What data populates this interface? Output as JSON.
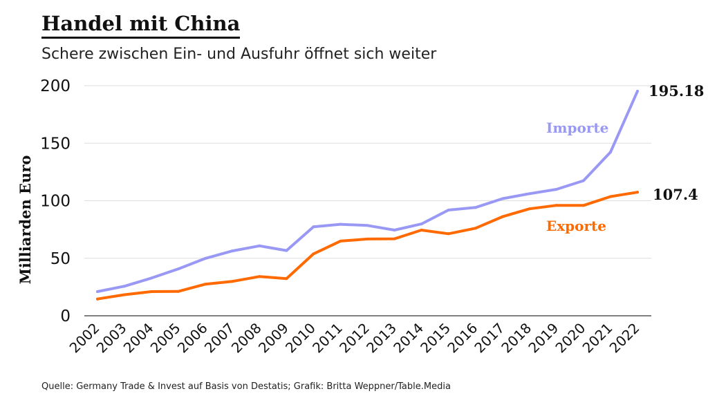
{
  "header": {
    "title": "Handel mit China",
    "subtitle": "Schere zwischen Ein- und Ausfuhr öffnet sich weiter"
  },
  "footer": {
    "source": "Quelle: Germany Trade & Invest auf Basis von Destatis; Grafik: Britta Weppner/Table.Media"
  },
  "colors": {
    "imports": "#9999f5",
    "exports": "#ff6a00",
    "grid": "#dddddd"
  },
  "chart_data": {
    "type": "line",
    "title": "Handel mit China",
    "subtitle": "Schere zwischen Ein- und Ausfuhr öffnet sich weiter",
    "xlabel": "",
    "ylabel": "Milliarden Euro",
    "ylim": [
      0,
      200
    ],
    "yticks": [
      "0",
      "50",
      "100",
      "150",
      "200"
    ],
    "grid": true,
    "x": [
      "2002",
      "2003",
      "2004",
      "2005",
      "2006",
      "2007",
      "2008",
      "2009",
      "2010",
      "2011",
      "2012",
      "2013",
      "2014",
      "2015",
      "2016",
      "2017",
      "2018",
      "2019",
      "2020",
      "2021",
      "2022"
    ],
    "series": [
      {
        "name": "Importe",
        "color": "#9999f5",
        "values": [
          21,
          25.7,
          32.8,
          40.8,
          49.9,
          56.4,
          60.8,
          56.7,
          77.3,
          79.5,
          78.5,
          74.5,
          79.8,
          91.9,
          94.1,
          101.8,
          106.1,
          109.9,
          117.4,
          142.3,
          195.18
        ],
        "end_label": "195.18"
      },
      {
        "name": "Exporte",
        "color": "#ff6a00",
        "values": [
          14.6,
          18.3,
          21,
          21.2,
          27.5,
          29.9,
          34.1,
          32.3,
          53.8,
          64.9,
          66.7,
          66.9,
          74.5,
          71.3,
          76.1,
          86.1,
          93,
          96,
          95.9,
          103.6,
          107.4
        ],
        "end_label": "107.4"
      }
    ]
  }
}
